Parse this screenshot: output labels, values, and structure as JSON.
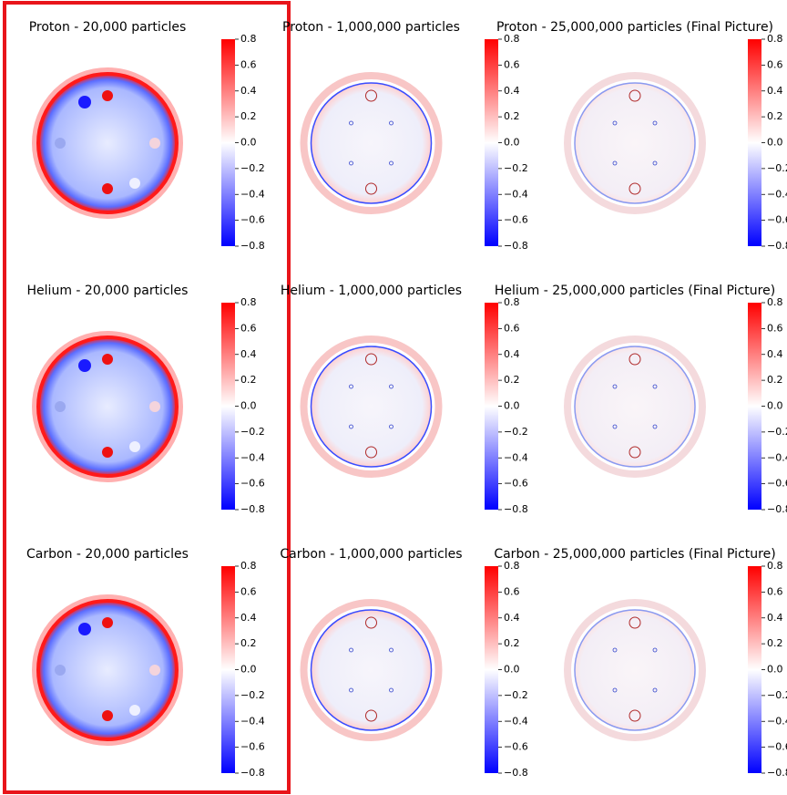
{
  "chart_data": [
    {
      "type": "image",
      "title": "Proton - 20,000 particles",
      "clim": [
        -0.8,
        0.8
      ],
      "colors": [
        "#0000ff",
        "#ffffff",
        "#ff0000"
      ],
      "cticks": [
        {
          "value": -0.8,
          "label": "−0.8"
        },
        {
          "value": -0.6,
          "label": "−0.6"
        },
        {
          "value": -0.4,
          "label": "−0.4"
        },
        {
          "value": -0.2,
          "label": "−0.2"
        },
        {
          "value": 0,
          "label": "0.0"
        },
        0.2,
        0.4,
        0.6,
        0.8
      ]
    },
    {
      "type": "image",
      "title": "Proton - 1,000,000 particles",
      "clim": [
        -0.8,
        0.8
      ],
      "colors": [
        "#0000ff",
        "#ffffff",
        "#ff0000"
      ],
      "cticks": [
        {
          "value": -0.8,
          "label": "−0.8"
        },
        {
          "value": -0.6,
          "label": "−0.6"
        },
        {
          "value": -0.4,
          "label": "−0.4"
        },
        {
          "value": -0.2,
          "label": "−0.2"
        },
        {
          "value": 0,
          "label": "0.0"
        },
        0.2,
        0.4,
        0.6,
        0.8
      ]
    },
    {
      "type": "image",
      "title": "Proton - 25,000,000 particles (Final Picture)",
      "clim": [
        -0.8,
        0.8
      ],
      "colors": [
        "#0000ff",
        "#ffffff",
        "#ff0000"
      ],
      "cticks": [
        {
          "value": -0.8,
          "label": "−0.8"
        },
        {
          "value": -0.6,
          "label": "−0.6"
        },
        {
          "value": -0.4,
          "label": "−0.4"
        },
        {
          "value": -0.2,
          "label": "−0.2"
        },
        {
          "value": 0,
          "label": "0.0"
        },
        0.2,
        0.4,
        0.6,
        0.8
      ]
    },
    {
      "type": "image",
      "title": "Helium - 20,000 particles",
      "clim": [
        -0.8,
        0.8
      ],
      "colors": [
        "#0000ff",
        "#ffffff",
        "#ff0000"
      ],
      "cticks": [
        {
          "value": -0.8,
          "label": "−0.8"
        },
        {
          "value": -0.6,
          "label": "−0.6"
        },
        {
          "value": -0.4,
          "label": "−0.4"
        },
        {
          "value": -0.2,
          "label": "−0.2"
        },
        {
          "value": 0,
          "label": "0.0"
        },
        0.2,
        0.4,
        0.6,
        0.8
      ]
    },
    {
      "type": "image",
      "title": "Helium - 1,000,000 particles",
      "clim": [
        -0.8,
        0.8
      ],
      "colors": [
        "#0000ff",
        "#ffffff",
        "#ff0000"
      ],
      "cticks": [
        {
          "value": -0.8,
          "label": "−0.8"
        },
        {
          "value": -0.6,
          "label": "−0.6"
        },
        {
          "value": -0.4,
          "label": "−0.4"
        },
        {
          "value": -0.2,
          "label": "−0.2"
        },
        {
          "value": 0,
          "label": "0.0"
        },
        0.2,
        0.4,
        0.6,
        0.8
      ]
    },
    {
      "type": "image",
      "title": "Helium - 25,000,000 particles (Final Picture)",
      "clim": [
        -0.8,
        0.8
      ],
      "colors": [
        "#0000ff",
        "#ffffff",
        "#ff0000"
      ],
      "cticks": [
        {
          "value": -0.8,
          "label": "−0.8"
        },
        {
          "value": -0.6,
          "label": "−0.6"
        },
        {
          "value": -0.4,
          "label": "−0.4"
        },
        {
          "value": -0.2,
          "label": "−0.2"
        },
        {
          "value": 0,
          "label": "0.0"
        },
        0.2,
        0.4,
        0.6,
        0.8
      ]
    },
    {
      "type": "image",
      "title": "Carbon - 20,000 particles",
      "clim": [
        -0.8,
        0.8
      ],
      "colors": [
        "#0000ff",
        "#ffffff",
        "#ff0000"
      ],
      "cticks": [
        {
          "value": -0.8,
          "label": "−0.8"
        },
        {
          "value": -0.6,
          "label": "−0.6"
        },
        {
          "value": -0.4,
          "label": "−0.4"
        },
        {
          "value": -0.2,
          "label": "−0.2"
        },
        {
          "value": 0,
          "label": "0.0"
        },
        0.2,
        0.4,
        0.6,
        0.8
      ]
    },
    {
      "type": "image",
      "title": "Carbon - 1,000,000 particles",
      "clim": [
        -0.8,
        0.8
      ],
      "colors": [
        "#0000ff",
        "#ffffff",
        "#ff0000"
      ],
      "cticks": [
        {
          "value": -0.8,
          "label": "−0.8"
        },
        {
          "value": -0.6,
          "label": "−0.6"
        },
        {
          "value": -0.4,
          "label": "−0.4"
        },
        {
          "value": -0.2,
          "label": "−0.2"
        },
        {
          "value": 0,
          "label": "0.0"
        },
        0.2,
        0.4,
        0.6,
        0.8
      ]
    },
    {
      "type": "image",
      "title": "Carbon - 25,000,000 particles (Final Picture)",
      "clim": [
        -0.8,
        0.8
      ],
      "colors": [
        "#0000ff",
        "#ffffff",
        "#ff0000"
      ],
      "cticks": [
        {
          "value": -0.8,
          "label": "−0.8"
        },
        {
          "value": -0.6,
          "label": "−0.6"
        },
        {
          "value": -0.4,
          "label": "−0.4"
        },
        {
          "value": -0.2,
          "label": "−0.2"
        },
        {
          "value": 0,
          "label": "0.0"
        },
        0.2,
        0.4,
        0.6,
        0.8
      ]
    }
  ]
}
